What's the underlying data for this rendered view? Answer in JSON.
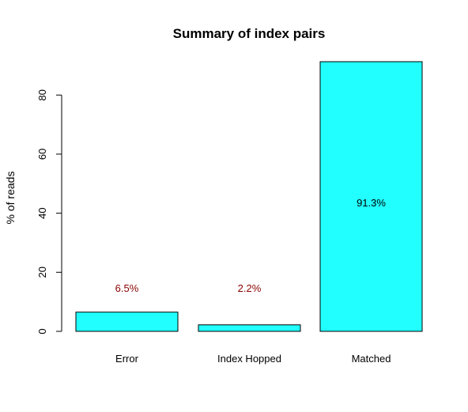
{
  "chart_data": {
    "type": "bar",
    "title": "Summary of index pairs",
    "xlabel": "",
    "ylabel": "% of reads",
    "categories": [
      "Error",
      "Index Hopped",
      "Matched"
    ],
    "values": [
      6.5,
      2.2,
      91.3
    ],
    "data_labels": [
      "6.5%",
      "2.2%",
      "91.3%"
    ],
    "yticks": [
      0,
      20,
      40,
      60,
      80
    ],
    "ylim": [
      0,
      91.3
    ],
    "bar_color": "#22FFFF",
    "bar_border_color": "#000000",
    "label_color_small": "#8B0000",
    "label_color_large": "#000000"
  }
}
